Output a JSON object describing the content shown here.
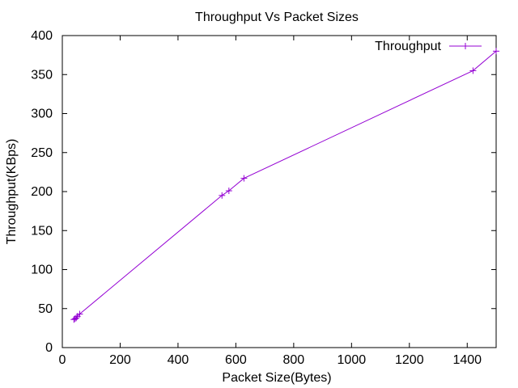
{
  "chart_data": {
    "type": "line",
    "title": "Throughput Vs Packet Sizes",
    "xlabel": "Packet Size(Bytes)",
    "ylabel": "Throughput(KBps)",
    "xlim": [
      0,
      1500
    ],
    "ylim": [
      0,
      400
    ],
    "xticks": [
      0,
      200,
      400,
      600,
      800,
      1000,
      1200,
      1400
    ],
    "yticks": [
      0,
      50,
      100,
      150,
      200,
      250,
      300,
      350,
      400
    ],
    "grid": false,
    "legend_position": "top-right",
    "series": [
      {
        "name": "Throughput",
        "color": "#9400d3",
        "marker": "plus",
        "x": [
          40,
          44,
          48,
          52,
          60,
          552,
          576,
          628,
          1420,
          1500
        ],
        "y": [
          36,
          37,
          38,
          40,
          43,
          195,
          201,
          217,
          355,
          380
        ]
      }
    ]
  }
}
